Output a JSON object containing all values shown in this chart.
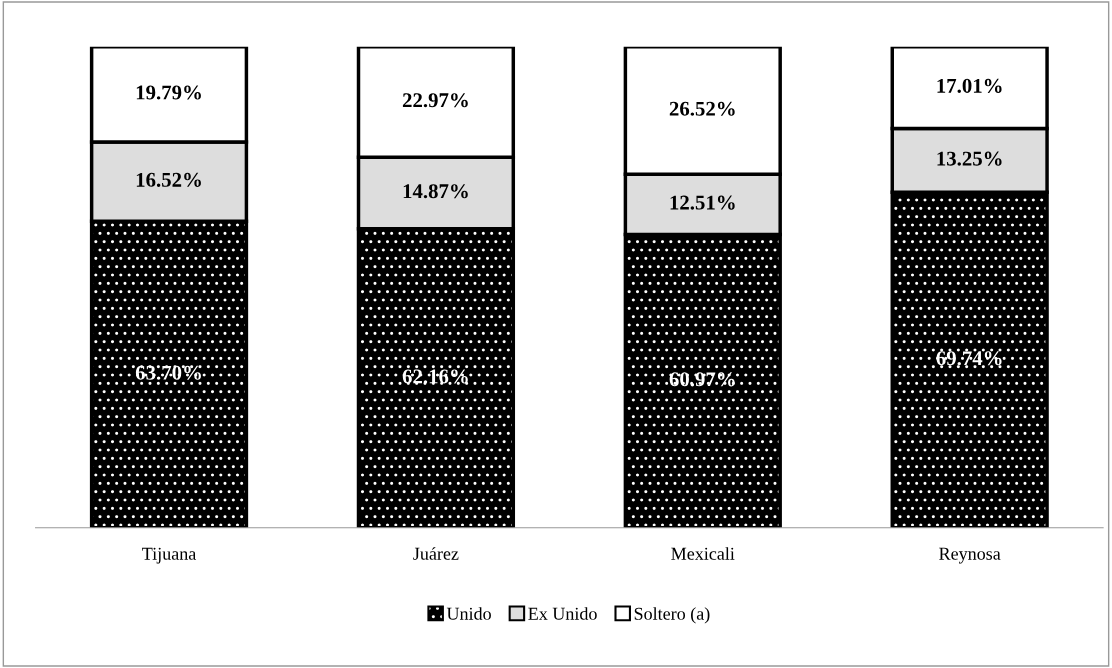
{
  "chart_data": {
    "type": "bar",
    "stacked": true,
    "categories": [
      "Tijuana",
      "Juárez",
      "Mexicali",
      "Reynosa"
    ],
    "ylim": [
      0,
      100
    ],
    "legend": "bottom",
    "grid": false,
    "series": [
      {
        "name": "Unido",
        "color": "#000000",
        "values": [
          63.7,
          62.16,
          60.97,
          69.74
        ],
        "value_labels": [
          "63.70%",
          "62.16%",
          "60.97%",
          "69.74%"
        ]
      },
      {
        "name": "Ex Unido",
        "color": "#dddddd",
        "values": [
          16.52,
          14.87,
          12.51,
          13.25
        ],
        "value_labels": [
          "16.52%",
          "14.87%",
          "12.51%",
          "13.25%"
        ]
      },
      {
        "name": "Soltero (a)",
        "color": "#ffffff",
        "values": [
          19.79,
          22.97,
          26.52,
          17.01
        ],
        "value_labels": [
          "19.79%",
          "22.97%",
          "26.52%",
          "17.01%"
        ]
      }
    ]
  }
}
